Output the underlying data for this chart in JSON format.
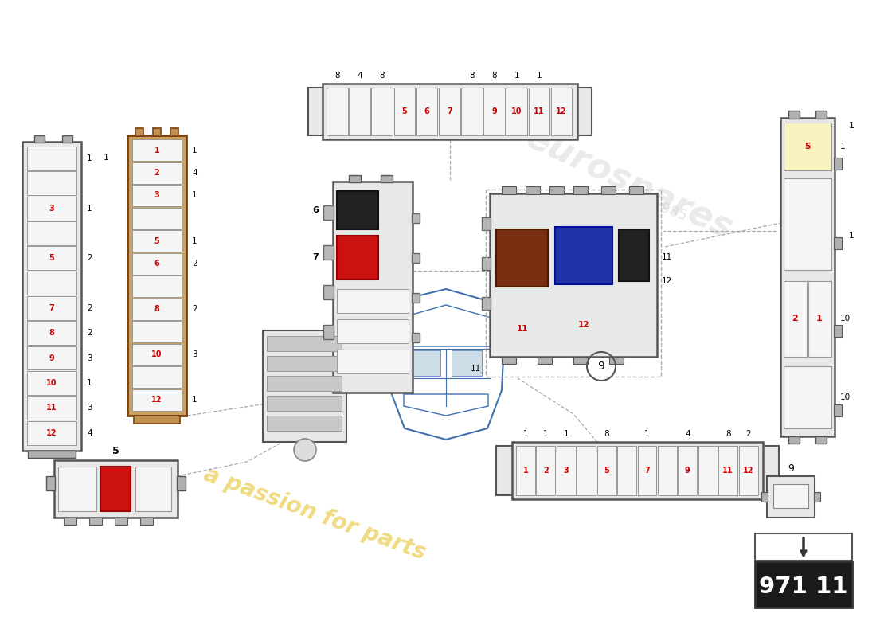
{
  "bg_color": "#ffffff",
  "part_number": "971 11",
  "watermark_text": "a passion for parts",
  "watermark_color": "#e8c840",
  "wm2_text": "eurospares",
  "wm2_color": "#bbbbbb",
  "red": "#cc0000",
  "dark": "#404040",
  "gray_box": "#c8c8c8",
  "gray_inner": "#e8e8e8",
  "gray_slot": "#f5f5f5",
  "slot_border": "#999999",
  "brown_border": "#7a4010",
  "brown_fill": "#c8a060",
  "relay_brown": "#7a3010",
  "relay_blue": "#2233aa",
  "relay_black": "#222222",
  "relay_red": "#cc1111",
  "relay_gray": "#888888",
  "car_line": "#4070b0",
  "dash_color": "#aaaaaa",
  "label_black": "#000000"
}
